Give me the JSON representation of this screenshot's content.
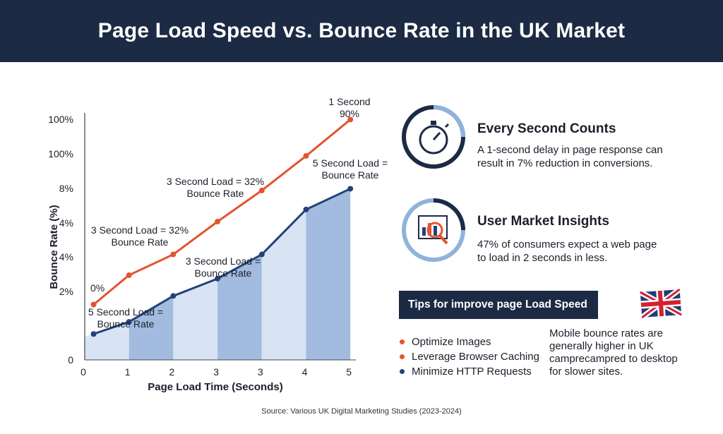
{
  "title": "Page Load Speed vs. Bounce Rate in the UK Market",
  "colors": {
    "header": "#1d2a44",
    "orange": "#e4542f",
    "navy": "#23427a",
    "area": "#9db7dd",
    "area_light": "#d6e2f2"
  },
  "chart_data": {
    "type": "line",
    "xlabel": "Page Load Time (Seconds)",
    "ylabel": "Bounce Rate (%)",
    "x_ticks": [
      "0",
      "1",
      "2",
      "3",
      "3",
      "4",
      "5"
    ],
    "y_ticks": [
      "0",
      "2%",
      "4%",
      "4%",
      "8%",
      "100%",
      "100%"
    ],
    "series": [
      {
        "name": "orange",
        "x": [
          0.2,
          1,
          2,
          3,
          4,
          5,
          6
        ],
        "y": [
          1.6,
          2.45,
          3.05,
          4.0,
          4.9,
          5.9,
          6.95
        ]
      },
      {
        "name": "navy",
        "x": [
          0.2,
          1,
          2,
          3,
          4,
          5,
          6
        ],
        "y": [
          0.75,
          1.1,
          1.85,
          2.35,
          3.05,
          4.35,
          4.95
        ]
      }
    ],
    "annotations": [
      {
        "text": "1 Second",
        "line2": "90%"
      },
      {
        "text": "3 Second Load = 32%",
        "line2": "Bounce Rate"
      },
      {
        "text": "5 Second Load =",
        "line2": "Bounce Rate"
      },
      {
        "text": "3 Second Load = 32%",
        "line2": "Bounce Rate"
      },
      {
        "text": "3 Second Load =",
        "line2": "Bounce Rate"
      },
      {
        "text": "0%",
        "line2": ""
      },
      {
        "text": "5 Second Load =",
        "line2": "Bounce Rate"
      }
    ]
  },
  "insights": [
    {
      "title": "Every Second Counts",
      "body": "A 1-second delay in page response can result in 7% reduction in conversions.",
      "icon": "stopwatch-icon"
    },
    {
      "title": "User Market Insights",
      "body": "47% of consumers expect a web page to load in 2 seconds in less.",
      "icon": "magnifier-chart-icon"
    }
  ],
  "tips": {
    "heading": "Tips for improve page Load Speed",
    "items": [
      {
        "label": "Optimize Images",
        "color": "#e4542f"
      },
      {
        "label": "Leverage Browser Caching",
        "color": "#e4542f"
      },
      {
        "label": "Minimize HTTP Requests",
        "color": "#23427a"
      }
    ]
  },
  "mobile_note": "Mobile bounce rates are generally higher in UK camprecampred to desktop for slower sites.",
  "flag_icon": "uk-flag-icon",
  "source": "Source: Various UK Digital Marketing Studies (2023-2024)"
}
